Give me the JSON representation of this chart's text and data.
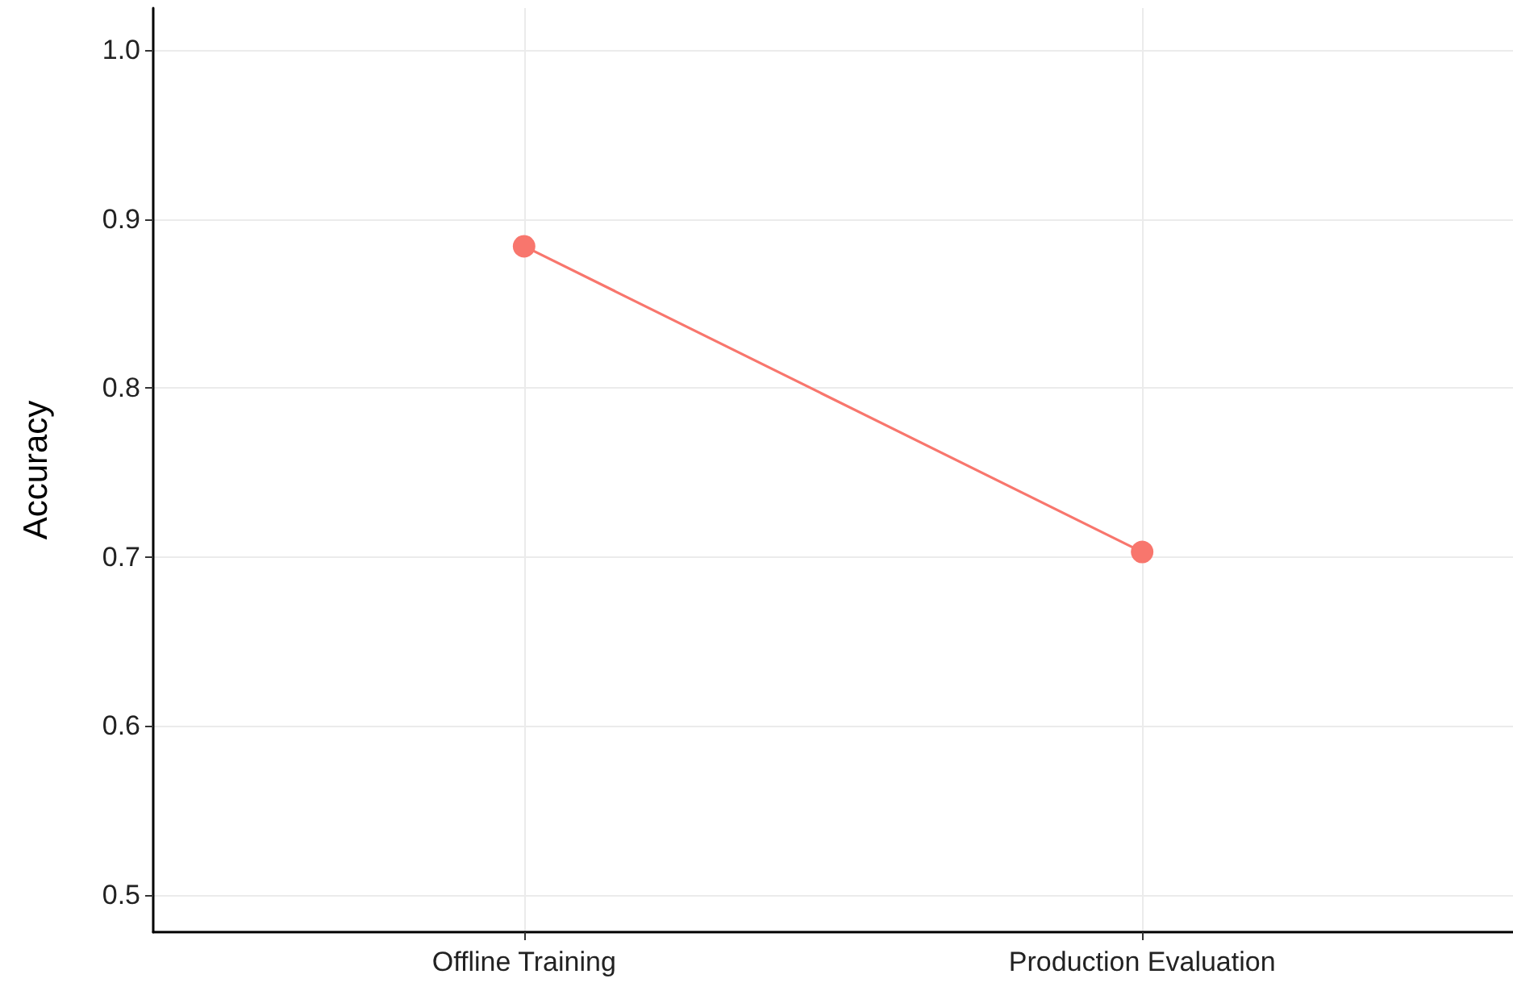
{
  "chart_data": {
    "type": "line",
    "ylabel": "Accuracy",
    "categories": [
      "Offline Training",
      "Production Evaluation"
    ],
    "series": [
      {
        "color": "#f8766d",
        "values": [
          0.884,
          0.703
        ]
      }
    ],
    "ylim": [
      0.478,
      1.025
    ],
    "yticks": [
      0.5,
      0.6,
      0.7,
      0.8,
      0.9,
      {
        "value": 1,
        "label": "1.0"
      }
    ],
    "grid": true,
    "marker": "circle",
    "line_style": "solid"
  }
}
